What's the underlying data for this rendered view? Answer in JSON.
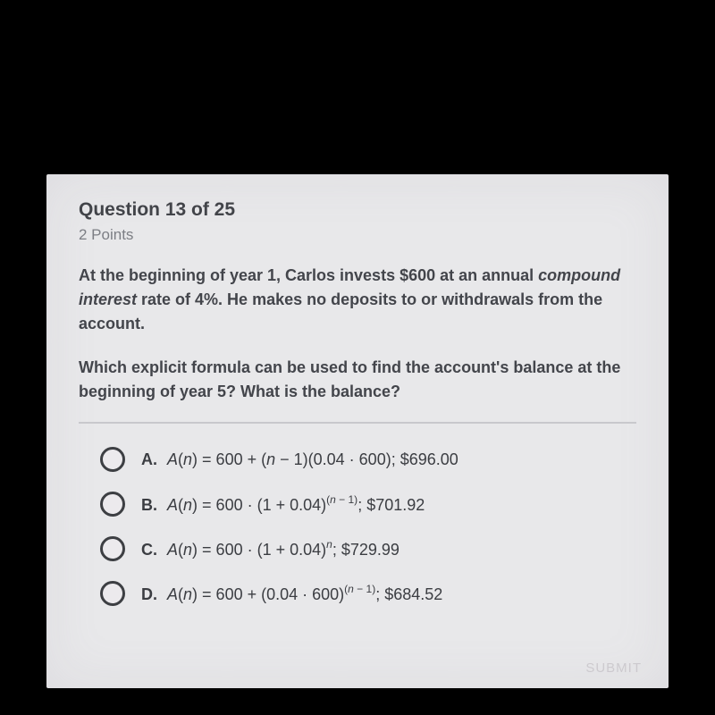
{
  "header": {
    "title": "Question 13 of 25",
    "points": "2 Points"
  },
  "prompt": {
    "line1a": "At the beginning of year 1, Carlos invests $600 at an annual ",
    "line1italic": "compound interest",
    "line1b": " rate of 4%. He makes no deposits to or withdrawals from the account.",
    "line2": "Which explicit formula can be used to find the account's balance at the beginning of year 5? What is the balance?"
  },
  "options": {
    "A": {
      "letter": "A.",
      "prefix": "A(n) = 600 + (n − 1)(0.04 · 600); $696.00"
    },
    "B": {
      "letter": "B.",
      "base": "A(n) = 600 · (1 + 0.04)",
      "exp": "(n − 1)",
      "suffix": "; $701.92"
    },
    "C": {
      "letter": "C.",
      "base": "A(n) = 600 · (1 + 0.04)",
      "exp": "n",
      "suffix": "; $729.99"
    },
    "D": {
      "letter": "D.",
      "base": "A(n) = 600 + (0.04 · 600)",
      "exp": "(n − 1)",
      "suffix": "; $684.52"
    }
  },
  "submit": "SUBMIT",
  "colors": {
    "page_bg": "#000000",
    "card_bg": "#e8e8ea",
    "heading": "#424449",
    "muted": "#7c7e84",
    "text": "#43454b",
    "divider": "#c8c8cc",
    "radio_border": "#3d3f43"
  }
}
